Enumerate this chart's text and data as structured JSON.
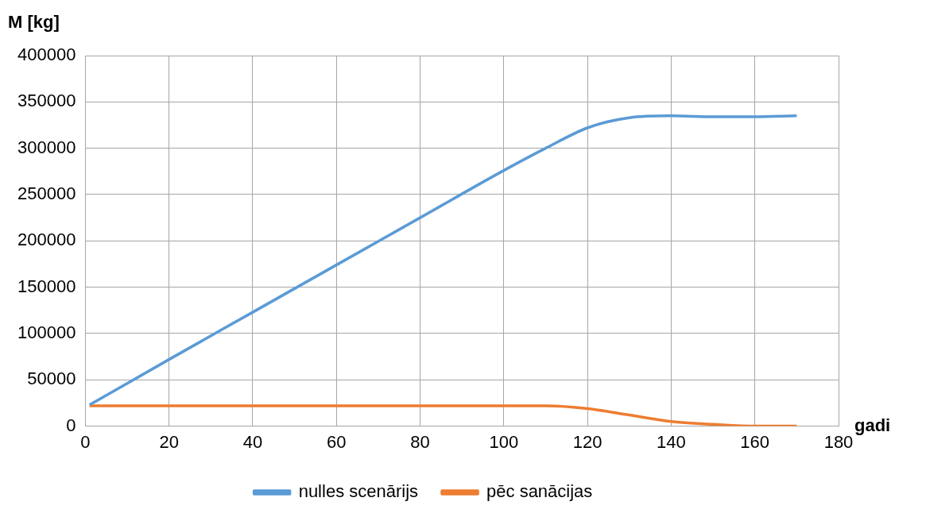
{
  "chart_data": {
    "type": "line",
    "xlabel": "gadi",
    "ylabel": "M [kg]",
    "xlim": [
      0,
      180
    ],
    "xticks": [
      0,
      20,
      40,
      60,
      80,
      100,
      120,
      140,
      160,
      180
    ],
    "ylim": [
      0,
      400000
    ],
    "yticks": [
      0,
      50000,
      100000,
      150000,
      200000,
      250000,
      300000,
      350000,
      400000
    ],
    "grid": true,
    "legend": "bottom",
    "marker": "none",
    "line_style": "solid",
    "x": [
      1,
      20,
      40,
      60,
      80,
      100,
      110,
      120,
      130,
      140,
      150,
      160,
      170
    ],
    "series": [
      {
        "name": "nulles scenārijs",
        "color": "#5b9bd5",
        "values": [
          23000,
          72000,
          123000,
          174000,
          225000,
          276000,
          300000,
          322000,
          333000,
          335000,
          334000,
          334000,
          335000
        ]
      },
      {
        "name": "pēc sanācijas",
        "color": "#ed7d31",
        "values": [
          22000,
          22000,
          22000,
          22000,
          22000,
          22000,
          22000,
          19000,
          12000,
          5000,
          2000,
          0,
          0
        ]
      }
    ]
  }
}
